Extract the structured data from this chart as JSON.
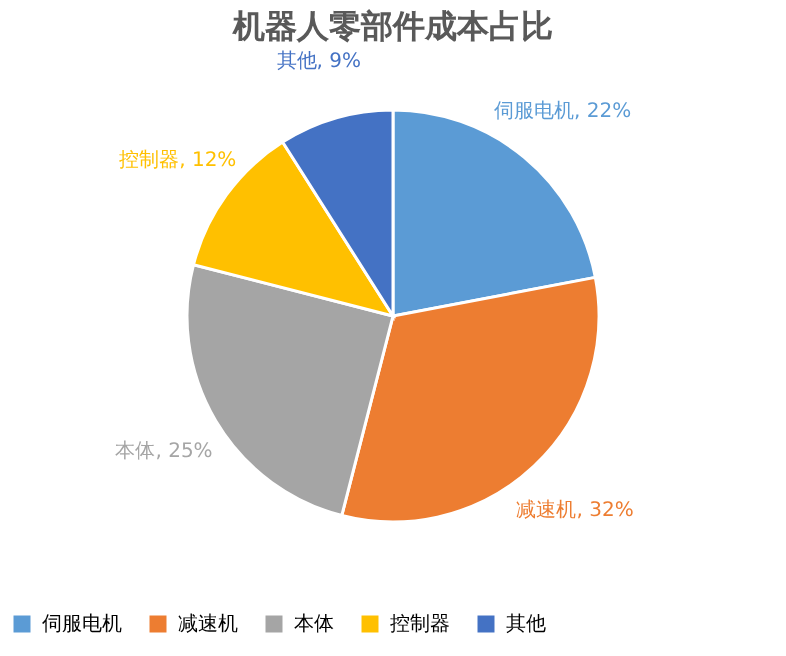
{
  "chart_data": {
    "type": "pie",
    "title": "机器人零部件成本占比",
    "categories": [
      "伺服电机",
      "减速机",
      "本体",
      "控制器",
      "其他"
    ],
    "values": [
      22,
      32,
      25,
      12,
      9
    ],
    "colors": [
      "#5b9bd5",
      "#ed7d31",
      "#a5a5a5",
      "#ffc000",
      "#4472c4"
    ],
    "value_labels": [
      "伺服电机, 22%",
      "减速机, 32%",
      "本体, 25%",
      "控制器, 12%",
      "其他, 9%"
    ],
    "legend": "bottom"
  }
}
